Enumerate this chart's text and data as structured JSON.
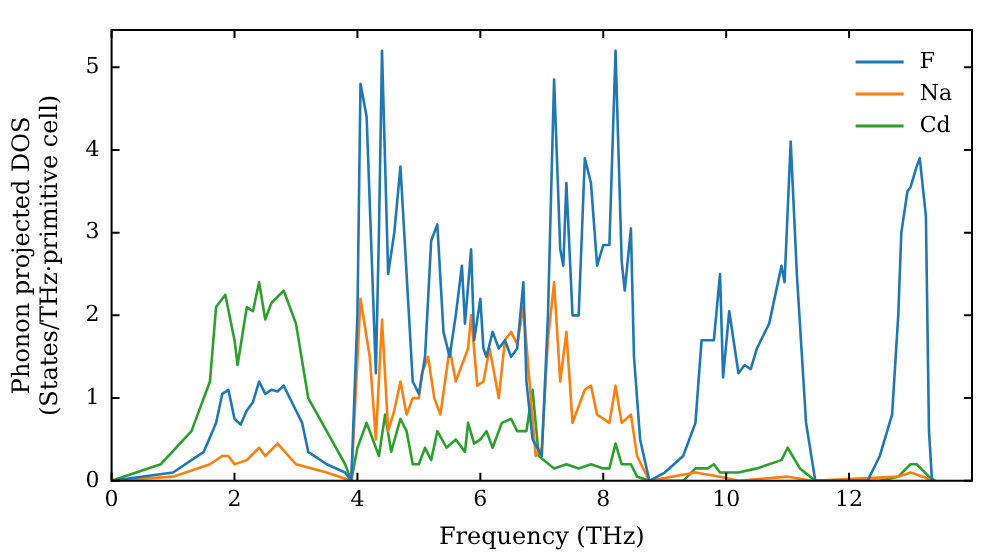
{
  "chart_data": {
    "type": "line",
    "xlabel": "Frequency (THz)",
    "ylabel": "Phonon projected DOS\n(States/THz·primitive cell)",
    "xlim": [
      0,
      14
    ],
    "ylim": [
      0,
      5.45
    ],
    "xticks": [
      0,
      2,
      4,
      6,
      8,
      10,
      12
    ],
    "yticks": [
      0,
      1,
      2,
      3,
      4,
      5
    ],
    "legend": "top right",
    "grid": false,
    "marker": "none",
    "line_style": "solid",
    "series": [
      {
        "name": "F",
        "color": "#1f77b4",
        "x": [
          0,
          1,
          1.5,
          1.7,
          1.8,
          1.9,
          2.0,
          2.1,
          2.2,
          2.3,
          2.4,
          2.5,
          2.6,
          2.7,
          2.8,
          3.0,
          3.1,
          3.2,
          3.5,
          3.8,
          3.9,
          4.0,
          4.05,
          4.15,
          4.3,
          4.35,
          4.4,
          4.5,
          4.6,
          4.7,
          4.8,
          4.9,
          5.0,
          5.1,
          5.2,
          5.3,
          5.4,
          5.5,
          5.6,
          5.7,
          5.75,
          5.85,
          5.9,
          6.0,
          6.05,
          6.1,
          6.2,
          6.3,
          6.4,
          6.5,
          6.6,
          6.7,
          6.75,
          6.85,
          7.0,
          7.1,
          7.2,
          7.3,
          7.35,
          7.4,
          7.5,
          7.6,
          7.7,
          7.8,
          7.9,
          8.0,
          8.1,
          8.2,
          8.3,
          8.35,
          8.45,
          8.5,
          8.6,
          8.75,
          9.0,
          9.3,
          9.5,
          9.6,
          9.8,
          9.9,
          9.95,
          10.05,
          10.2,
          10.3,
          10.4,
          10.5,
          10.7,
          10.9,
          10.95,
          11.05,
          11.15,
          11.3,
          11.45,
          12.3,
          12.5,
          12.7,
          12.8,
          12.85,
          12.95,
          13.0,
          13.1,
          13.15,
          13.25,
          13.3,
          13.35
        ],
        "values": [
          0,
          0.1,
          0.35,
          0.7,
          1.05,
          1.1,
          0.75,
          0.68,
          0.85,
          0.95,
          1.2,
          1.05,
          1.1,
          1.08,
          1.15,
          0.85,
          0.7,
          0.35,
          0.2,
          0.1,
          0,
          2.0,
          4.8,
          4.4,
          1.3,
          3.0,
          5.2,
          2.5,
          3.0,
          3.8,
          2.5,
          1.2,
          1.05,
          1.5,
          2.9,
          3.1,
          1.8,
          1.5,
          2.0,
          2.6,
          1.9,
          2.8,
          1.7,
          2.2,
          1.6,
          1.5,
          1.8,
          1.6,
          1.7,
          1.5,
          1.6,
          2.4,
          1.2,
          0.5,
          0.3,
          2.0,
          4.85,
          2.8,
          2.6,
          3.6,
          2.0,
          2.0,
          3.9,
          3.6,
          2.6,
          2.85,
          2.85,
          5.2,
          2.65,
          2.3,
          3.05,
          1.5,
          0.5,
          0,
          0.1,
          0.3,
          0.7,
          1.7,
          1.7,
          2.5,
          1.25,
          2.05,
          1.3,
          1.4,
          1.35,
          1.6,
          1.9,
          2.6,
          2.4,
          4.1,
          2.5,
          0.7,
          0,
          0,
          0.3,
          0.8,
          2.0,
          3.0,
          3.5,
          3.55,
          3.8,
          3.9,
          3.2,
          0.6,
          0
        ]
      },
      {
        "name": "Na",
        "color": "#ff7f0e",
        "x": [
          0,
          1.0,
          1.6,
          1.8,
          1.9,
          2.0,
          2.2,
          2.4,
          2.5,
          2.7,
          3.0,
          3.5,
          3.9,
          4.05,
          4.2,
          4.3,
          4.4,
          4.5,
          4.6,
          4.7,
          4.8,
          4.9,
          5.0,
          5.05,
          5.15,
          5.25,
          5.35,
          5.5,
          5.6,
          5.8,
          5.85,
          5.95,
          6.05,
          6.15,
          6.3,
          6.4,
          6.5,
          6.6,
          6.7,
          6.8,
          6.9,
          7.0,
          7.1,
          7.2,
          7.3,
          7.4,
          7.5,
          7.7,
          7.8,
          7.9,
          8.1,
          8.2,
          8.3,
          8.45,
          8.55,
          8.75,
          9.5,
          9.9,
          10.2,
          11.0,
          11.4,
          12.8,
          13.0,
          13.2,
          13.35
        ],
        "values": [
          0,
          0.05,
          0.2,
          0.3,
          0.3,
          0.2,
          0.25,
          0.4,
          0.3,
          0.45,
          0.2,
          0.1,
          0,
          2.2,
          1.5,
          0.5,
          1.95,
          0.6,
          0.85,
          1.2,
          0.8,
          1.0,
          1.0,
          1.3,
          1.5,
          1.0,
          0.8,
          1.6,
          1.2,
          1.6,
          2.0,
          1.15,
          1.2,
          1.6,
          1.0,
          1.7,
          1.8,
          1.65,
          2.1,
          1.2,
          0.3,
          0.4,
          1.7,
          2.4,
          1.2,
          1.8,
          0.7,
          1.1,
          1.15,
          0.8,
          0.7,
          1.15,
          0.7,
          0.8,
          0.3,
          0,
          0.1,
          0.05,
          0,
          0.05,
          0,
          0.05,
          0.1,
          0.05,
          0
        ]
      },
      {
        "name": "Cd",
        "color": "#2ca02c",
        "x": [
          0,
          0.8,
          1.3,
          1.6,
          1.7,
          1.85,
          2.0,
          2.05,
          2.2,
          2.3,
          2.4,
          2.5,
          2.6,
          2.8,
          3.0,
          3.2,
          3.5,
          3.8,
          3.9,
          4.0,
          4.15,
          4.25,
          4.35,
          4.45,
          4.55,
          4.7,
          4.8,
          4.9,
          5.0,
          5.1,
          5.2,
          5.3,
          5.45,
          5.6,
          5.75,
          5.8,
          5.9,
          6.0,
          6.1,
          6.2,
          6.35,
          6.5,
          6.6,
          6.75,
          6.85,
          6.95,
          7.2,
          7.4,
          7.6,
          7.8,
          8.0,
          8.1,
          8.2,
          8.3,
          8.45,
          8.55,
          8.75,
          9.3,
          9.5,
          9.7,
          9.8,
          9.9,
          10.0,
          10.2,
          10.5,
          10.9,
          11.0,
          11.2,
          11.45,
          12.5,
          12.8,
          13.0,
          13.1,
          13.3,
          13.4
        ],
        "values": [
          0,
          0.2,
          0.6,
          1.2,
          2.1,
          2.25,
          1.7,
          1.4,
          2.1,
          2.05,
          2.4,
          1.95,
          2.15,
          2.3,
          1.9,
          1.0,
          0.6,
          0.2,
          0,
          0.4,
          0.7,
          0.5,
          0.3,
          0.8,
          0.35,
          0.75,
          0.6,
          0.2,
          0.2,
          0.4,
          0.25,
          0.6,
          0.4,
          0.5,
          0.35,
          0.7,
          0.45,
          0.5,
          0.6,
          0.4,
          0.7,
          0.75,
          0.6,
          0.6,
          1.1,
          0.3,
          0.15,
          0.2,
          0.15,
          0.2,
          0.15,
          0.15,
          0.45,
          0.2,
          0.2,
          0.05,
          0,
          0,
          0.15,
          0.15,
          0.2,
          0.1,
          0.1,
          0.1,
          0.15,
          0.25,
          0.4,
          0.15,
          0,
          0,
          0.05,
          0.2,
          0.2,
          0.05,
          0
        ]
      }
    ]
  }
}
